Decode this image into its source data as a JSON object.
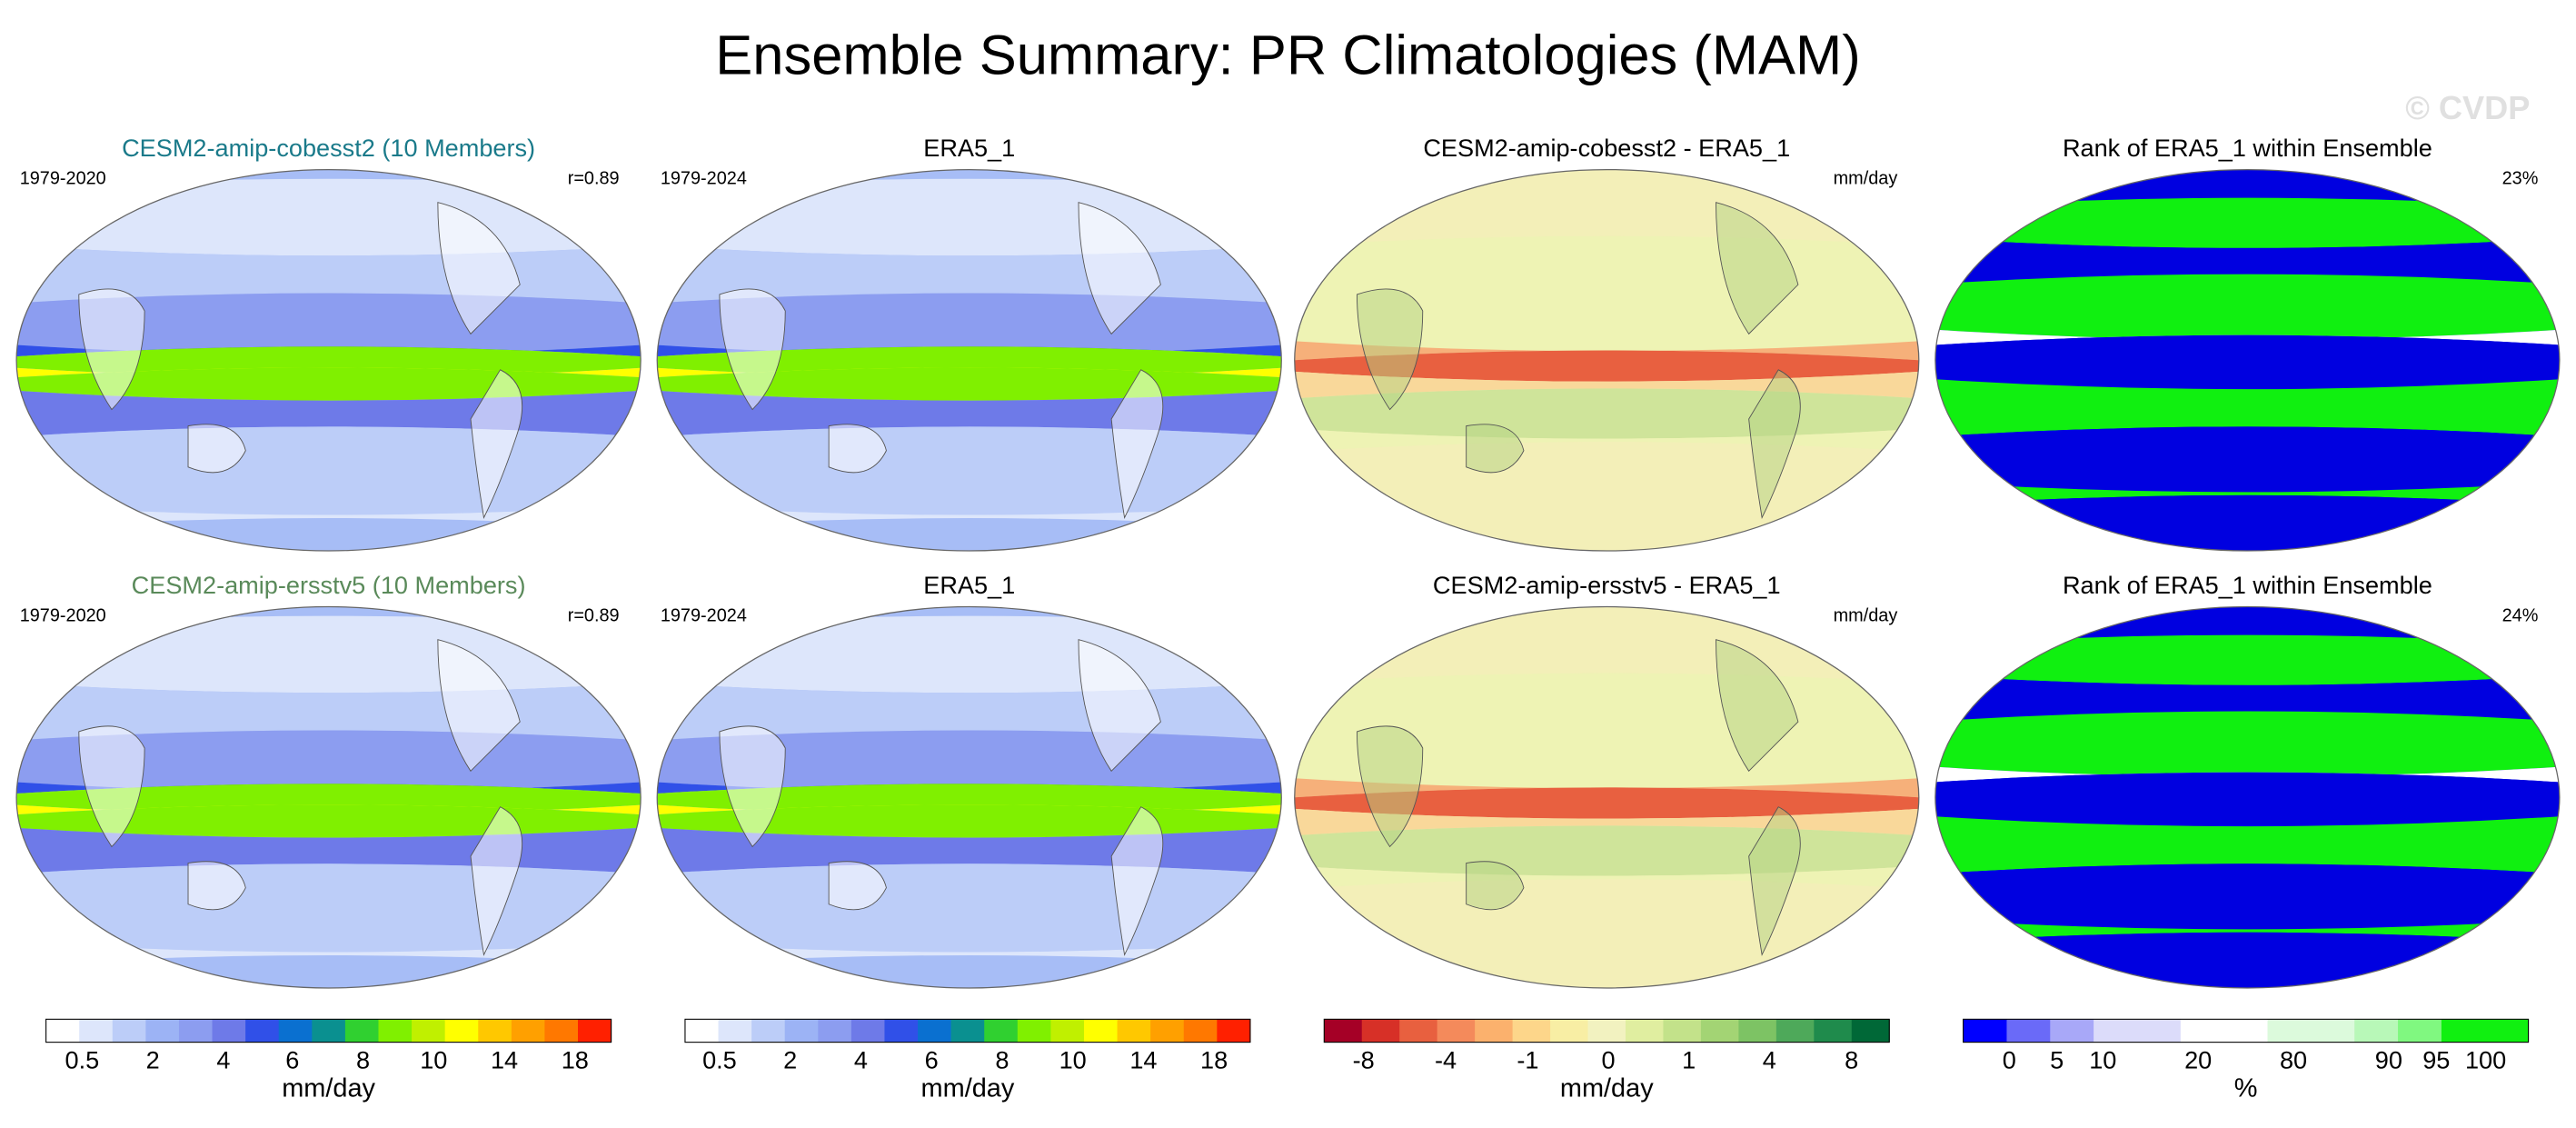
{
  "title": "Ensemble Summary: PR Climatologies (MAM)",
  "watermark": "© CVDP",
  "panels": [
    {
      "title": "CESM2-amip-cobesst2 (10 Members)",
      "left": "1979-2020",
      "right": "r=0.89"
    },
    {
      "title": "ERA5_1",
      "left": "1979-2024"
    },
    {
      "title": "CESM2-amip-cobesst2 - ERA5_1",
      "right": "mm/day"
    },
    {
      "title": "Rank of ERA5_1 within Ensemble",
      "right": "23%"
    },
    {
      "title": "CESM2-amip-ersstv5 (10 Members)",
      "left": "1979-2020",
      "right": "r=0.89"
    },
    {
      "title": "ERA5_1",
      "left": "1979-2024"
    },
    {
      "title": "CESM2-amip-ersstv5 - ERA5_1",
      "right": "mm/day"
    },
    {
      "title": "Rank of ERA5_1 within Ensemble",
      "right": "24%"
    }
  ],
  "colorbars": [
    {
      "ticks": [
        0.5,
        2,
        4,
        6,
        8,
        10,
        14,
        18
      ],
      "label": "mm/day"
    },
    {
      "ticks": [
        0.5,
        2,
        4,
        6,
        8,
        10,
        14,
        18
      ],
      "label": "mm/day"
    },
    {
      "ticks": [
        -8,
        -4,
        -1,
        0,
        1,
        4,
        8
      ],
      "label": "mm/day"
    },
    {
      "ticks": [
        0,
        5,
        10,
        20,
        80,
        90,
        95,
        100
      ],
      "label": "%"
    }
  ]
}
